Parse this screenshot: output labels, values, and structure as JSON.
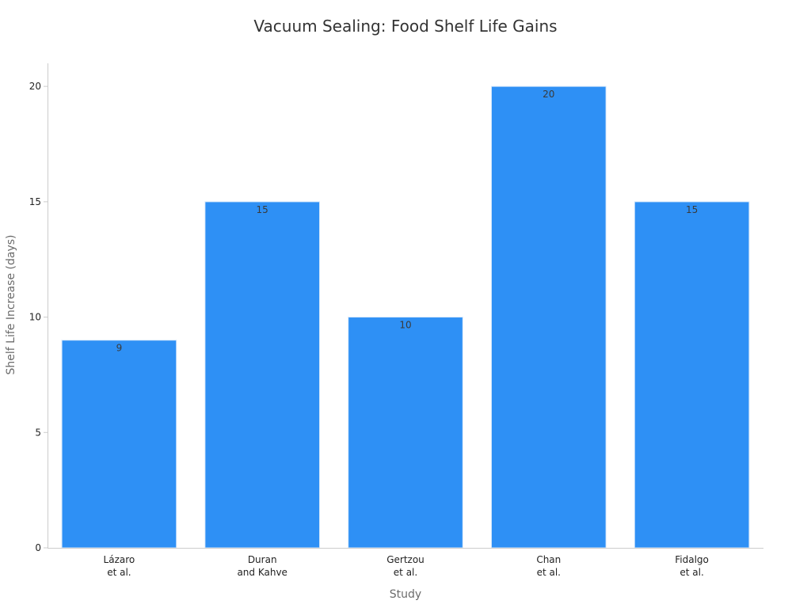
{
  "chart_data": {
    "type": "bar",
    "title": "Vacuum Sealing: Food Shelf Life Gains",
    "xlabel": "Study",
    "ylabel": "Shelf Life Increase (days)",
    "categories": [
      [
        "Lázaro",
        "et al."
      ],
      [
        "Duran",
        "and Kahve"
      ],
      [
        "Gertzou",
        "et al."
      ],
      [
        "Chan",
        "et al."
      ],
      [
        "Fidalgo",
        "et al."
      ]
    ],
    "values": [
      9,
      15,
      10,
      20,
      15
    ],
    "data_labels": [
      "9",
      "15",
      "10",
      "20",
      "15"
    ],
    "ylim": [
      0,
      21
    ],
    "yticks": [
      0,
      5,
      10,
      15,
      20
    ],
    "grid": false,
    "legend": "none",
    "colors": {
      "bar": "#2e90f5",
      "bar_edge": "#d6e8fb",
      "axis": "#cccccc"
    }
  }
}
